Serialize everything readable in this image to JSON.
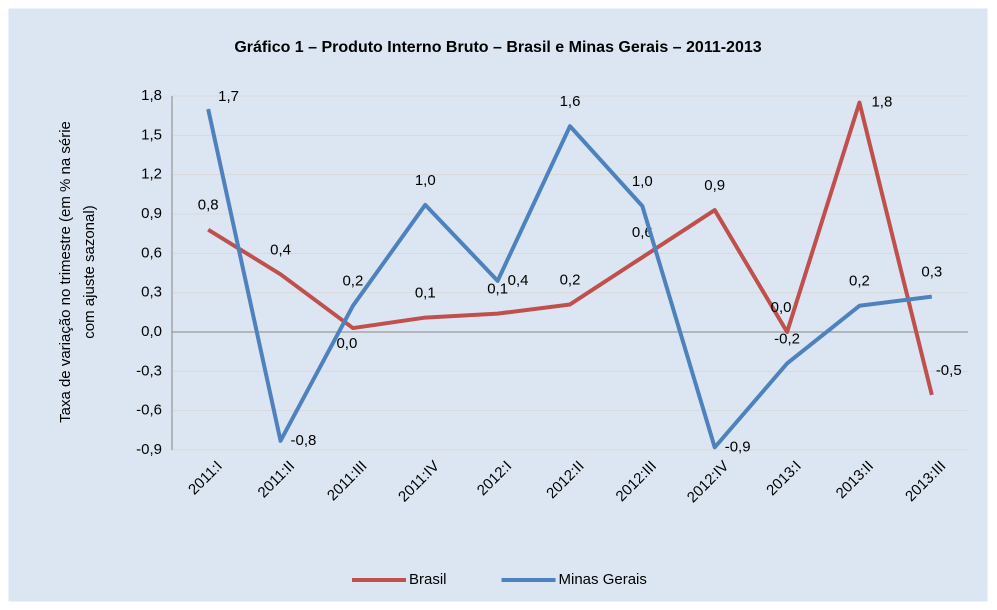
{
  "chart_data": {
    "type": "line",
    "title": "Gráfico 1 – Produto Interno Bruto – Brasil e Minas Gerais – 2011-2013",
    "ylabel": [
      "Taxa de variação no trimestre (em % na série",
      "com ajuste sazonal)"
    ],
    "categories": [
      "2011:I",
      "2011:II",
      "2011:III",
      "2011:IV",
      "2012:I",
      "2012:II",
      "2012:III",
      "2012:IV",
      "2013:I",
      "2013:II",
      "2013:III"
    ],
    "series": [
      {
        "name": "Brasil",
        "color": "#c0504d",
        "values": [
          0.78,
          0.44,
          0.03,
          0.11,
          0.14,
          0.21,
          0.57,
          0.93,
          0.0,
          1.75,
          -0.48
        ],
        "value_labels": [
          "0,8",
          "0,4",
          "0,0",
          "0,1",
          "0,1",
          "0,2",
          "0,6",
          "0,9",
          "0,0",
          "1,8",
          "-0,5"
        ]
      },
      {
        "name": "Minas Gerais",
        "color": "#4f81bd",
        "values": [
          1.7,
          -0.83,
          0.2,
          0.97,
          0.39,
          1.57,
          0.96,
          -0.88,
          -0.24,
          0.2,
          0.27
        ],
        "value_labels": [
          "1,7",
          "-0,8",
          "0,2",
          "1,0",
          "0,4",
          "1,6",
          "1,0",
          "-0,9",
          "-0,2",
          "0,2",
          "0,3"
        ]
      }
    ],
    "ylim": [
      -0.9,
      1.8
    ],
    "yticks": [
      {
        "value": -0.9,
        "label": "-0,9"
      },
      {
        "value": -0.6,
        "label": "-0,6"
      },
      {
        "value": -0.3,
        "label": "-0,3"
      },
      {
        "value": 0,
        "label": "0,0"
      },
      {
        "value": 0.3,
        "label": "0,3"
      },
      {
        "value": 0.6,
        "label": "0,6"
      },
      {
        "value": 0.9,
        "label": "0,9"
      },
      {
        "value": 1.2,
        "label": "1,2"
      },
      {
        "value": 1.5,
        "label": "1,5"
      },
      {
        "value": 1.8,
        "label": "1,8"
      }
    ],
    "grid": true,
    "legend": "bottom"
  }
}
